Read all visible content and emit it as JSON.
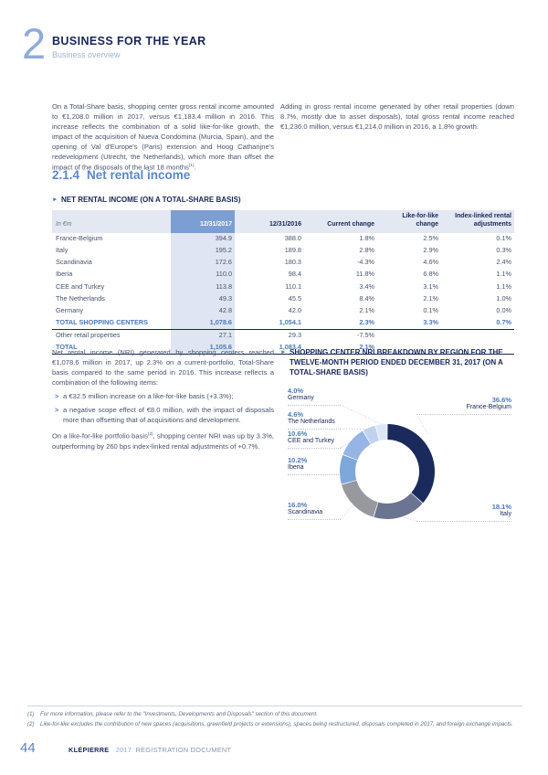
{
  "theme": {
    "accent_blue": "#4a78bc",
    "navy": "#16265a",
    "light_blue": "#8fabd8",
    "header_row_bg": "#e3e8f2",
    "col2017_bg": "#dfe5f2",
    "col2017_header_bg": "#7d9ed2"
  },
  "header": {
    "chapter_number": "2",
    "title": "BUSINESS FOR THE YEAR",
    "subtitle": "Business overview"
  },
  "intro": {
    "left_main": "On a Total-Share basis, shopping center gross rental income amounted to €1,208.0 million in 2017, versus €1,183.4 million in 2016. This increase reflects the combination of a solid like-for-like growth, the impact of the acquisition of Nueva Condomina (Murcia, Spain), and the opening of Val d'Europe's (Paris) extension and Hoog Catharijne's redevelopment (Utrecht, the Netherlands), which more than offset the impact of the disposals of the last 18 months",
    "left_sup": "(1)",
    "left_tail": ".",
    "right": "Adding in gross rental income generated by other retail properties (down 8.7%, mostly due to asset disposals), total gross rental income reached €1,236.0 million, versus €1,214.0 million in 2016, a 1.8% growth."
  },
  "section": {
    "number": "2.1.4",
    "title": "Net rental income"
  },
  "table": {
    "marker": "►",
    "caption": "NET RENTAL INCOME (ON A TOTAL-SHARE BASIS)",
    "col_headers": [
      "In €m",
      "12/31/2017",
      "12/31/2016",
      "Current change",
      "Like-for-like change",
      "Index-linked rental adjustments"
    ],
    "rows": [
      {
        "cells": [
          "France-Belgium",
          "394.9",
          "388.0",
          "1.8%",
          "2.5%",
          "0.1%"
        ],
        "total": false
      },
      {
        "cells": [
          "Italy",
          "195.2",
          "189.8",
          "2.8%",
          "2.9%",
          "0.3%"
        ],
        "total": false
      },
      {
        "cells": [
          "Scandinavia",
          "172.6",
          "180.3",
          "-4.3%",
          "4.6%",
          "2.4%"
        ],
        "total": false
      },
      {
        "cells": [
          "Iberia",
          "110.0",
          "98.4",
          "11.8%",
          "6.8%",
          "1.1%"
        ],
        "total": false
      },
      {
        "cells": [
          "CEE and Turkey",
          "113.8",
          "110.1",
          "3.4%",
          "3.1%",
          "1.1%"
        ],
        "total": false
      },
      {
        "cells": [
          "The Netherlands",
          "49.3",
          "45.5",
          "8.4%",
          "2.1%",
          "1.0%"
        ],
        "total": false
      },
      {
        "cells": [
          "Germany",
          "42.8",
          "42.0",
          "2.1%",
          "0.1%",
          "0.0%"
        ],
        "total": false
      },
      {
        "cells": [
          "TOTAL SHOPPING CENTERS",
          "1,078.6",
          "1,054.1",
          "2.3%",
          "3.3%",
          "0.7%"
        ],
        "total": true
      },
      {
        "cells": [
          "Other retail properties",
          "27.1",
          "29.3",
          "-7.5%",
          "",
          ""
        ],
        "total": false
      },
      {
        "cells": [
          "TOTAL",
          "1,105.6",
          "1,083.4",
          "2.1%",
          "",
          ""
        ],
        "total": true
      }
    ]
  },
  "analysis": {
    "para1": "Net rental income (NRI) generated by shopping centers reached €1,078.6 million in 2017, up 2.3% on a current-portfolio, Total-Share basis compared to the same period in 2016. This increase reflects a combination of the following items:",
    "bullet_marker": ">",
    "bullets": [
      "a €32.5 million increase on a like-for-like basis (+3.3%);",
      "a negative scope effect of €8.0 million, with the impact of disposals more than offsetting that of acquisitions and development."
    ],
    "para2_main": "On a like-for-like portfolio basis",
    "para2_sup": "(2)",
    "para2_tail": ", shopping center NRI was up by 3.3%, outperforming by 260 bps index-linked rental adjustments of +0.7%."
  },
  "chart": {
    "marker": "►",
    "caption": "SHOPPING CENTER NRI BREAKDOWN BY REGION FOR THE TWELVE-MONTH PERIOD ENDED DECEMBER 31, 2017 (ON A TOTAL-SHARE BASIS)"
  },
  "chart_data": {
    "type": "pie",
    "subtype": "donut",
    "title": "Shopping center NRI breakdown by region for the twelve-month period ended December 31, 2017 (on a Total-Share basis)",
    "unit": "%",
    "categories": [
      "France-Belgium",
      "Italy",
      "Scandinavia",
      "Iberia",
      "CEE and Turkey",
      "The Netherlands",
      "Germany"
    ],
    "values": [
      36.6,
      18.1,
      16.0,
      10.2,
      10.6,
      4.6,
      4.0
    ],
    "labels": [
      "36.6%",
      "18.1%",
      "16.0%",
      "10.2%",
      "10.6%",
      "4.6%",
      "4.0%"
    ],
    "colors": [
      "#1b2a5c",
      "#6b7490",
      "#97999f",
      "#7ea7db",
      "#96b4e4",
      "#c0d2ee",
      "#dce6f6"
    ],
    "start_angle_deg": 0,
    "direction": "clockwise",
    "legend_position": "around"
  },
  "footnotes": [
    {
      "num": "(1)",
      "text": "For more information, please refer to the \"Investments, Developments and Disposals\" section of this document."
    },
    {
      "num": "(2)",
      "text": "Like-for-like excludes the contribution of new spaces (acquisitions, greenfield projects or extensions), spaces being restructured, disposals completed in 2017, and foreign exchange impacts."
    }
  ],
  "footer": {
    "page_number": "44",
    "brand": "KLÉPIERRE",
    "year": "2017",
    "doc_title": "REGISTRATION DOCUMENT"
  }
}
